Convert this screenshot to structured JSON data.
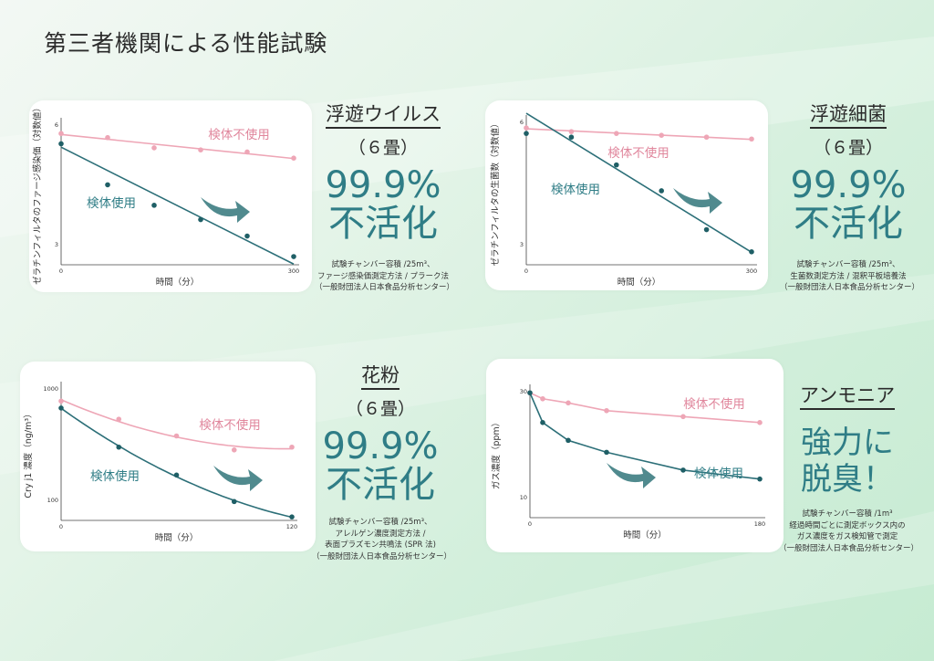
{
  "page": {
    "title": "第三者機関による性能試験"
  },
  "colors": {
    "treated": "#2c6f78",
    "untreated": "#eea6b6",
    "result": "#2f7d86",
    "arrow": "#3d7d82"
  },
  "charts": [
    {
      "id": "virus",
      "title": "浮遊ウイルス",
      "subtitle": "（６畳）",
      "result_lines": [
        "99.9%",
        "不活化"
      ],
      "notes": [
        "試験チャンバー容積 /25m³、",
        "ファージ感染価測定方法 / プラーク法",
        "（一般財団法人日本食品分析センター）"
      ]
    },
    {
      "id": "bacteria",
      "title": "浮遊細菌",
      "subtitle": "（６畳）",
      "result_lines": [
        "99.9%",
        "不活化"
      ],
      "notes": [
        "試験チャンバー容積 /25m³、",
        "生菌数測定方法 / 混釈平板培養法",
        "（一般財団法人日本食品分析センター）"
      ]
    },
    {
      "id": "pollen",
      "title": "花粉",
      "subtitle": "（６畳）",
      "result_lines": [
        "99.9%",
        "不活化"
      ],
      "notes": [
        "試験チャンバー容積 /25m³、",
        "アレルゲン濃度測定方法 /",
        "表面プラズモン共鳴法 (SPR 法)",
        "（一般財団法人日本食品分析センター）"
      ]
    },
    {
      "id": "ammonia",
      "title": "アンモニア",
      "subtitle": "",
      "result_lines": [
        "強力に",
        "脱臭！"
      ],
      "notes": [
        "試験チャンバー容積 /1m³",
        "経過時間ごとに測定ボックス内の",
        "ガス濃度をガス検知管で測定",
        "（一般財団法人日本食品分析センター）"
      ]
    }
  ],
  "chart_data": [
    {
      "type": "scatter",
      "ylabel": "ゼラチンフィルタのファージ感染価（対数値）",
      "xlabel": "時間（分）",
      "x_ticks": [
        "0",
        "300"
      ],
      "y_ticks": [
        "6",
        "3"
      ],
      "xlim": [
        0,
        300
      ],
      "ylim": [
        2.85,
        6.3
      ],
      "series": [
        {
          "name": "検体不使用",
          "x": [
            0,
            60,
            120,
            180,
            240,
            300
          ],
          "y": [
            6.05,
            5.95,
            5.7,
            5.65,
            5.6,
            5.45
          ],
          "fit": "linear"
        },
        {
          "name": "検体使用",
          "x": [
            0,
            60,
            120,
            180,
            240,
            300
          ],
          "y": [
            5.8,
            4.8,
            4.3,
            3.95,
            3.55,
            3.05
          ],
          "fit": "linear"
        }
      ]
    },
    {
      "type": "scatter",
      "ylabel": "ゼラチンフィルタの生菌数（対数値）",
      "xlabel": "時間（分）",
      "x_ticks": [
        "0",
        "300"
      ],
      "y_ticks": [
        "6",
        "3"
      ],
      "xlim": [
        0,
        300
      ],
      "ylim": [
        2.45,
        6.35
      ],
      "series": [
        {
          "name": "検体不使用",
          "x": [
            0,
            60,
            120,
            180,
            240,
            300
          ],
          "y": [
            6.15,
            6.05,
            6.0,
            5.95,
            5.9,
            5.85
          ],
          "fit": "linear"
        },
        {
          "name": "検体使用",
          "x": [
            0,
            60,
            120,
            180,
            240,
            300
          ],
          "y": [
            6.0,
            5.9,
            5.15,
            4.45,
            3.4,
            2.8
          ],
          "fit": "linear"
        }
      ]
    },
    {
      "type": "scatter",
      "ylabel": "Cry j1 濃度（ng/m³）",
      "xlabel": "時間（分）",
      "x_ticks": [
        "0",
        "120"
      ],
      "y_ticks": [
        "1000",
        "100"
      ],
      "xlim": [
        0,
        120
      ],
      "ylim": [
        95,
        1050
      ],
      "series": [
        {
          "name": "検体不使用",
          "x": [
            0,
            30,
            60,
            90,
            120
          ],
          "y": [
            950,
            820,
            700,
            600,
            620
          ],
          "fit": "curve"
        },
        {
          "name": "検体使用",
          "x": [
            0,
            30,
            60,
            90,
            120
          ],
          "y": [
            900,
            620,
            420,
            230,
            120
          ],
          "fit": "curve"
        }
      ]
    },
    {
      "type": "line",
      "ylabel": "ガス濃度（ppm）",
      "xlabel": "時間（分）",
      "x_ticks": [
        "0",
        "180"
      ],
      "y_ticks": [
        "30",
        "10"
      ],
      "xlim": [
        0,
        180
      ],
      "ylim": [
        9,
        30.5
      ],
      "series": [
        {
          "name": "検体不使用",
          "x": [
            0,
            10,
            30,
            60,
            120,
            180
          ],
          "y": [
            30,
            29,
            28.3,
            27,
            26,
            25
          ]
        },
        {
          "name": "検体使用",
          "x": [
            0,
            10,
            30,
            60,
            120,
            180
          ],
          "y": [
            30,
            25,
            22,
            20,
            17,
            15.5
          ]
        }
      ]
    }
  ]
}
